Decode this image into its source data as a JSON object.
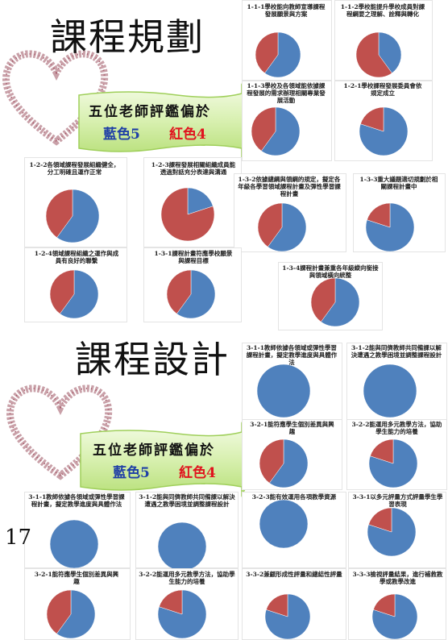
{
  "page_number": "17",
  "colors": [
    "#4f81bd",
    "#c0504d"
  ],
  "sections": [
    {
      "title": "課程規劃",
      "banner": {
        "text": "五位老師評鑑偏於",
        "blue": "藍色5",
        "red": "紅色4"
      },
      "pies": [
        {
          "label": "1-1-1學校能向教師宣導課程發展願景與方案",
          "values": [
            60,
            40
          ]
        },
        {
          "label": "1-1-2學校能提升學校成員對課程綱要之理解、詮釋與轉化",
          "values": [
            40,
            60
          ]
        },
        {
          "label": "1-1-3學校及各領域能依據課程發展的需求辦理相關專業發展活動",
          "values": [
            60,
            40
          ]
        },
        {
          "label": "1-2-1學校課程發展委員會依規定成立",
          "values": [
            80,
            20
          ]
        },
        {
          "label": "1-2-2各領域課程發展組織健全，分工明確且運作正常",
          "values": [
            60,
            40
          ]
        },
        {
          "label": "1-2-3課程發展相關組織成員能透過對話充分表達與溝通",
          "values": [
            20,
            80
          ]
        },
        {
          "label": "1-3-2依據總綱與領綱的規定，擬定各年級各學習領域課程計畫及彈性學習課程計畫",
          "values": [
            60,
            40
          ]
        },
        {
          "label": "1-3-3重大議題適切規劃於相關課程計畫中",
          "values": [
            80,
            20
          ]
        },
        {
          "label": "1-2-4領域課程組織之運作與成員有良好的聯繫",
          "values": [
            60,
            40
          ]
        },
        {
          "label": "1-3-1課程計畫符應學校願景與課程目標",
          "values": [
            60,
            40
          ]
        },
        {
          "label": "1-3-4課程計畫兼重各年級縱向銜接與領域橫向統整",
          "values": [
            60,
            40
          ]
        }
      ]
    },
    {
      "title": "課程設計",
      "banner": {
        "text": "五位老師評鑑偏於",
        "blue": "藍色5",
        "red": "紅色4"
      },
      "pies": [
        {
          "label": "3-1-1教師依據各領域或彈性學習課程計畫，擬定教學進度與具體作法",
          "values": [
            100,
            0
          ]
        },
        {
          "label": "3-1-2能與同儕教師共同備課以解決遭遇之教學困境並調整課程設計",
          "values": [
            100,
            0
          ]
        },
        {
          "label": "3-2-1能符應學生個別差異與興趣",
          "values": [
            60,
            40
          ]
        },
        {
          "label": "3-2-2能運用多元教學方法，協助學生能力的培養",
          "values": [
            80,
            20
          ]
        },
        {
          "label": "3-1-1教師依據各領域或彈性學習課程計畫，擬定教學進度與具體作法",
          "values": [
            100,
            0
          ]
        },
        {
          "label": "3-1-2能與同儕教師共同備課以解決遭遇之教學困境並調整課程設計",
          "values": [
            100,
            0
          ]
        },
        {
          "label": "3-2-3能有效運用各項教學資源",
          "values": [
            100,
            0
          ]
        },
        {
          "label": "3-3-1以多元評量方式評量學生學習表現",
          "values": [
            80,
            20
          ]
        },
        {
          "label": "3-2-1能符應學生個別差異與興趣",
          "values": [
            60,
            40
          ]
        },
        {
          "label": "3-2-2能運用多元教學方法，協助學生能力的培養",
          "values": [
            80,
            20
          ]
        },
        {
          "label": "3-3-2兼顧形成性評量和總結性評量",
          "values": [
            80,
            20
          ]
        },
        {
          "label": "3-3-3檢視評量結果，進行補救教學或教學改進",
          "values": [
            80,
            20
          ]
        }
      ]
    }
  ]
}
